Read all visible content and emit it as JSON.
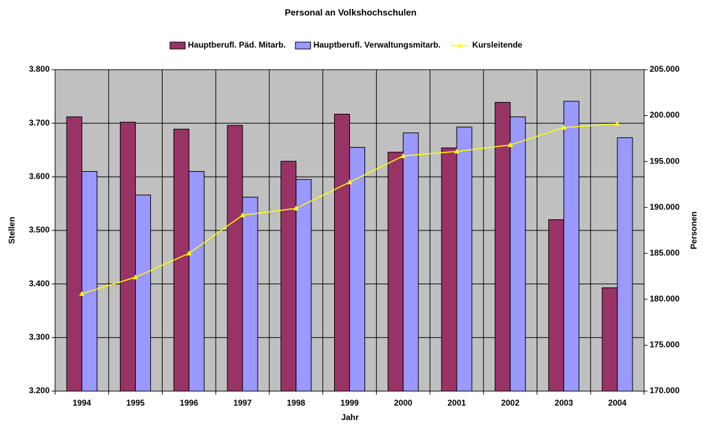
{
  "chart_data": {
    "type": "bar",
    "title": "Personal an Volkshochschulen",
    "x_label": "Jahr",
    "y_label": "Stellen",
    "y2_label": "Personen",
    "categories": [
      "1994",
      "1995",
      "1996",
      "1997",
      "1998",
      "1999",
      "2000",
      "2001",
      "2002",
      "2003",
      "2004"
    ],
    "series": [
      {
        "name": "Hauptberufl. Päd. Mitarb.",
        "color": "#993366",
        "type": "bar",
        "values": [
          3712,
          3702,
          3689,
          3696,
          3629,
          3717,
          3646,
          3654,
          3739,
          3520,
          3393
        ]
      },
      {
        "name": "Hauptberufl. Verwaltungsmitarb.",
        "color": "#9999ff",
        "type": "bar",
        "values": [
          3610,
          3566,
          3610,
          3562,
          3595,
          3655,
          3682,
          3693,
          3712,
          3741,
          3673
        ]
      },
      {
        "name": "Kursleitende",
        "color": "#ffff00",
        "type": "line",
        "axis": "y2",
        "values": [
          180600,
          182400,
          185000,
          189150,
          189900,
          192750,
          195600,
          196100,
          196800,
          198700,
          199100
        ]
      }
    ],
    "ylim": [
      3200,
      3800
    ],
    "yticks": [
      {
        "value": 3200,
        "label": "3.200"
      },
      {
        "value": 3300,
        "label": "3.300"
      },
      {
        "value": 3400,
        "label": "3.400"
      },
      {
        "value": 3500,
        "label": "3.500"
      },
      {
        "value": 3600,
        "label": "3.600"
      },
      {
        "value": 3700,
        "label": "3.700"
      },
      {
        "value": 3800,
        "label": "3.800"
      }
    ],
    "y2lim": [
      170000,
      205000
    ],
    "y2ticks": [
      {
        "value": 170000,
        "label": "170.000"
      },
      {
        "value": 175000,
        "label": "175.000"
      },
      {
        "value": 180000,
        "label": "180.000"
      },
      {
        "value": 185000,
        "label": "185.000"
      },
      {
        "value": 190000,
        "label": "190.000"
      },
      {
        "value": 195000,
        "label": "195.000"
      },
      {
        "value": 200000,
        "label": "200.000"
      },
      {
        "value": 205000,
        "label": "205.000"
      }
    ],
    "plot_background": "#c0c0c0",
    "legend": "top"
  }
}
